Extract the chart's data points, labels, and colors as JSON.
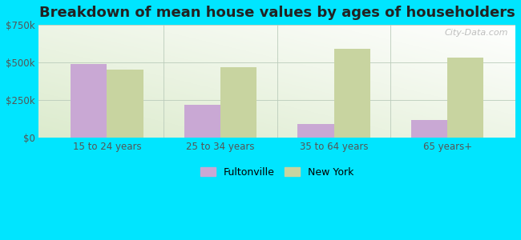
{
  "title": "Breakdown of mean house values by ages of householders",
  "categories": [
    "15 to 24 years",
    "25 to 34 years",
    "35 to 64 years",
    "65 years+"
  ],
  "fultonville_values": [
    490000,
    220000,
    90000,
    120000
  ],
  "newyork_values": [
    450000,
    470000,
    590000,
    530000
  ],
  "fultonville_color": "#c9a8d4",
  "newyork_color": "#c8d4a0",
  "outer_background": "#00e5ff",
  "title_fontsize": 13,
  "title_color": "#222222",
  "ylim": [
    0,
    750000
  ],
  "yticks": [
    0,
    250000,
    500000,
    750000
  ],
  "ytick_labels": [
    "$0",
    "$250k",
    "$500k",
    "$750k"
  ],
  "legend_labels": [
    "Fultonville",
    "New York"
  ],
  "watermark": "City-Data.com",
  "bar_width": 0.32,
  "grid_color": "#bbccbb",
  "tick_color": "#555555",
  "tick_fontsize": 8.5
}
